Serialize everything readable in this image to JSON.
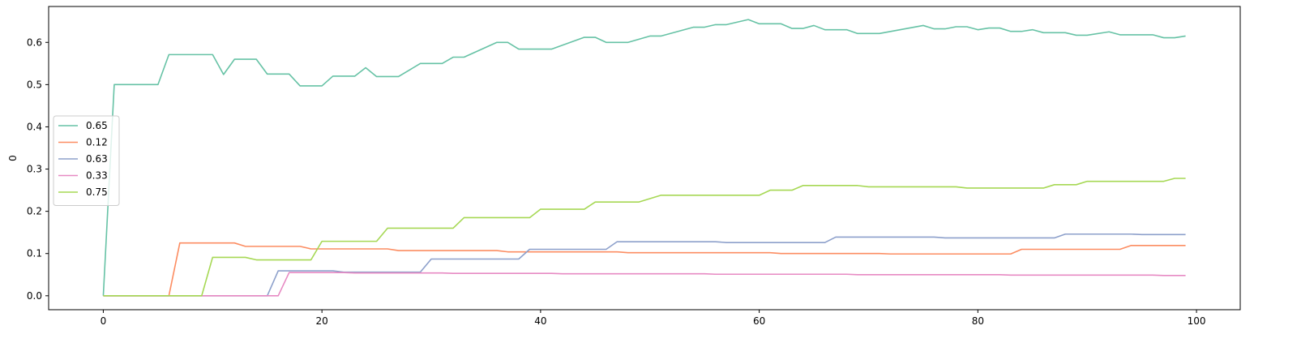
{
  "chart_data": {
    "type": "line",
    "title": "",
    "xlabel": "",
    "ylabel": "0",
    "xlim": [
      -5,
      104
    ],
    "ylim": [
      -0.033,
      0.685
    ],
    "xticks": [
      0,
      20,
      40,
      60,
      80,
      100
    ],
    "xtick_labels": [
      "0",
      "20",
      "40",
      "60",
      "80",
      "100"
    ],
    "yticks": [
      0.0,
      0.1,
      0.2,
      0.3,
      0.4,
      0.5,
      0.6
    ],
    "ytick_labels": [
      "0.0",
      "0.1",
      "0.2",
      "0.3",
      "0.4",
      "0.5",
      "0.6"
    ],
    "grid": false,
    "legend_position": "center-left",
    "series": [
      {
        "name": "0.65",
        "color": "#66c2a5",
        "points": [
          [
            0,
            0.0
          ],
          [
            1,
            0.5
          ],
          [
            5,
            0.5
          ],
          [
            6,
            0.571
          ],
          [
            10,
            0.571
          ],
          [
            11,
            0.524
          ],
          [
            12,
            0.56
          ],
          [
            14,
            0.56
          ],
          [
            15,
            0.525
          ],
          [
            17,
            0.525
          ],
          [
            18,
            0.497
          ],
          [
            20,
            0.497
          ],
          [
            21,
            0.52
          ],
          [
            23,
            0.52
          ],
          [
            24,
            0.54
          ],
          [
            25,
            0.519
          ],
          [
            27,
            0.519
          ],
          [
            29,
            0.55
          ],
          [
            31,
            0.55
          ],
          [
            32,
            0.565
          ],
          [
            33,
            0.565
          ],
          [
            36,
            0.6
          ],
          [
            37,
            0.6
          ],
          [
            38,
            0.584
          ],
          [
            41,
            0.584
          ],
          [
            44,
            0.612
          ],
          [
            45,
            0.612
          ],
          [
            46,
            0.6
          ],
          [
            48,
            0.6
          ],
          [
            50,
            0.615
          ],
          [
            51,
            0.615
          ],
          [
            54,
            0.636
          ],
          [
            55,
            0.636
          ],
          [
            56,
            0.642
          ],
          [
            57,
            0.642
          ],
          [
            59,
            0.654
          ],
          [
            60,
            0.644
          ],
          [
            62,
            0.644
          ],
          [
            63,
            0.633
          ],
          [
            64,
            0.633
          ],
          [
            65,
            0.64
          ],
          [
            66,
            0.63
          ],
          [
            68,
            0.63
          ],
          [
            69,
            0.621
          ],
          [
            71,
            0.621
          ],
          [
            75,
            0.64
          ],
          [
            76,
            0.632
          ],
          [
            77,
            0.632
          ],
          [
            78,
            0.637
          ],
          [
            79,
            0.637
          ],
          [
            80,
            0.63
          ],
          [
            81,
            0.634
          ],
          [
            82,
            0.634
          ],
          [
            83,
            0.626
          ],
          [
            84,
            0.626
          ],
          [
            85,
            0.63
          ],
          [
            86,
            0.623
          ],
          [
            88,
            0.623
          ],
          [
            89,
            0.617
          ],
          [
            90,
            0.617
          ],
          [
            92,
            0.625
          ],
          [
            93,
            0.618
          ],
          [
            96,
            0.618
          ],
          [
            97,
            0.611
          ],
          [
            98,
            0.611
          ],
          [
            99,
            0.615
          ]
        ]
      },
      {
        "name": "0.12",
        "color": "#fc8d62",
        "points": [
          [
            0,
            0.0
          ],
          [
            6,
            0.0
          ],
          [
            7,
            0.125
          ],
          [
            12,
            0.125
          ],
          [
            13,
            0.117
          ],
          [
            18,
            0.117
          ],
          [
            19,
            0.111
          ],
          [
            26,
            0.111
          ],
          [
            27,
            0.107
          ],
          [
            36,
            0.107
          ],
          [
            37,
            0.104
          ],
          [
            47,
            0.104
          ],
          [
            48,
            0.102
          ],
          [
            61,
            0.102
          ],
          [
            62,
            0.1
          ],
          [
            71,
            0.1
          ],
          [
            72,
            0.099
          ],
          [
            83,
            0.099
          ],
          [
            84,
            0.11
          ],
          [
            93,
            0.11
          ],
          [
            94,
            0.119
          ],
          [
            99,
            0.119
          ]
        ]
      },
      {
        "name": "0.63",
        "color": "#8da0cb",
        "points": [
          [
            0,
            0.0
          ],
          [
            15,
            0.0
          ],
          [
            16,
            0.059
          ],
          [
            21,
            0.059
          ],
          [
            22,
            0.056
          ],
          [
            29,
            0.056
          ],
          [
            30,
            0.087
          ],
          [
            38,
            0.087
          ],
          [
            39,
            0.11
          ],
          [
            46,
            0.11
          ],
          [
            47,
            0.128
          ],
          [
            56,
            0.128
          ],
          [
            57,
            0.126
          ],
          [
            66,
            0.126
          ],
          [
            67,
            0.139
          ],
          [
            76,
            0.139
          ],
          [
            77,
            0.137
          ],
          [
            87,
            0.137
          ],
          [
            88,
            0.146
          ],
          [
            94,
            0.146
          ],
          [
            95,
            0.145
          ],
          [
            99,
            0.145
          ]
        ]
      },
      {
        "name": "0.33",
        "color": "#e78ac3",
        "points": [
          [
            0,
            0.0
          ],
          [
            16,
            0.0
          ],
          [
            17,
            0.055
          ],
          [
            22,
            0.055
          ],
          [
            23,
            0.054
          ],
          [
            31,
            0.054
          ],
          [
            32,
            0.053
          ],
          [
            41,
            0.053
          ],
          [
            42,
            0.052
          ],
          [
            55,
            0.052
          ],
          [
            56,
            0.051
          ],
          [
            68,
            0.051
          ],
          [
            69,
            0.05
          ],
          [
            82,
            0.05
          ],
          [
            83,
            0.049
          ],
          [
            96,
            0.049
          ],
          [
            97,
            0.048
          ],
          [
            99,
            0.048
          ]
        ]
      },
      {
        "name": "0.75",
        "color": "#a6d854",
        "points": [
          [
            0,
            0.0
          ],
          [
            9,
            0.0
          ],
          [
            10,
            0.091
          ],
          [
            13,
            0.091
          ],
          [
            14,
            0.085
          ],
          [
            19,
            0.085
          ],
          [
            20,
            0.129
          ],
          [
            25,
            0.129
          ],
          [
            26,
            0.16
          ],
          [
            32,
            0.16
          ],
          [
            33,
            0.185
          ],
          [
            39,
            0.185
          ],
          [
            40,
            0.205
          ],
          [
            44,
            0.205
          ],
          [
            45,
            0.222
          ],
          [
            49,
            0.222
          ],
          [
            51,
            0.238
          ],
          [
            60,
            0.238
          ],
          [
            61,
            0.25
          ],
          [
            63,
            0.25
          ],
          [
            64,
            0.261
          ],
          [
            69,
            0.261
          ],
          [
            70,
            0.258
          ],
          [
            78,
            0.258
          ],
          [
            79,
            0.255
          ],
          [
            86,
            0.255
          ],
          [
            87,
            0.263
          ],
          [
            89,
            0.263
          ],
          [
            90,
            0.271
          ],
          [
            97,
            0.271
          ],
          [
            98,
            0.278
          ],
          [
            99,
            0.278
          ]
        ]
      }
    ]
  }
}
